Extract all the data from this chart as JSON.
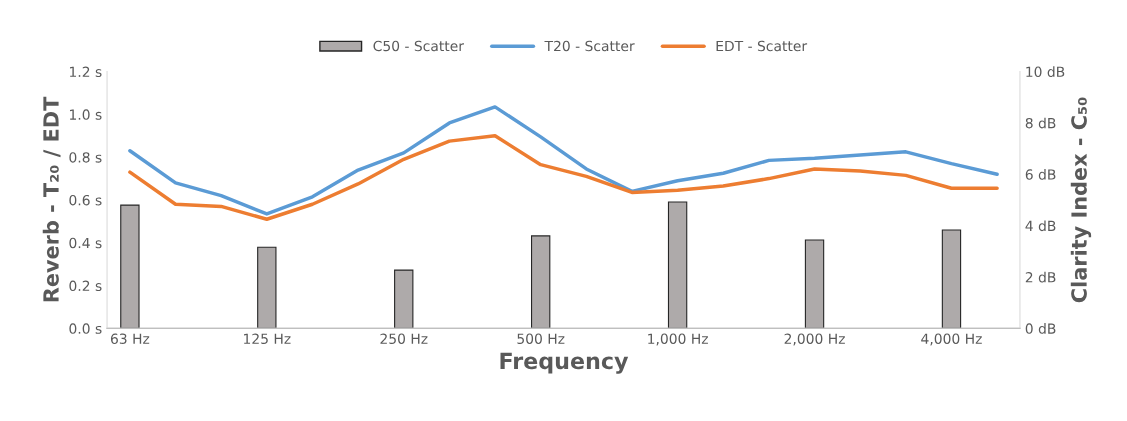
{
  "chart_data": {
    "type": "line",
    "xlabel": "Frequency",
    "ylabel": "Reverb - T₂₀ / EDT",
    "y2label": "Clarity Index - C₅₀",
    "categories": [
      "63 Hz",
      null,
      null,
      "125 Hz",
      null,
      null,
      "250 Hz",
      null,
      null,
      "500 Hz",
      null,
      null,
      "1,000 Hz",
      null,
      null,
      "2,000 Hz",
      null,
      null,
      "4,000 Hz",
      null
    ],
    "series": [
      {
        "name": "C50 - Scatter",
        "type": "bar",
        "axis": "y2",
        "color": "#aeaaaa",
        "values": [
          4.8,
          null,
          null,
          3.16,
          null,
          null,
          2.27,
          null,
          null,
          3.6,
          null,
          null,
          4.92,
          null,
          null,
          3.44,
          null,
          null,
          3.83,
          null
        ]
      },
      {
        "name": "T20 - Scatter",
        "color": "#5b9bd5",
        "values": [
          0.83,
          0.68,
          0.62,
          0.535,
          0.615,
          0.74,
          0.82,
          0.96,
          1.035,
          0.895,
          0.745,
          0.64,
          0.69,
          0.725,
          0.785,
          0.795,
          0.81,
          0.825,
          0.77,
          0.72
        ]
      },
      {
        "name": "EDT - Scatter",
        "color": "#ed7d31",
        "values": [
          0.73,
          0.58,
          0.57,
          0.51,
          0.58,
          0.675,
          0.79,
          0.875,
          0.9,
          0.765,
          0.71,
          0.635,
          0.645,
          0.665,
          0.7,
          0.745,
          0.735,
          0.715,
          0.655,
          0.655
        ]
      }
    ],
    "ylim": [
      0,
      1.2
    ],
    "yticks": [
      {
        "value": 0,
        "label": "0.0 s"
      },
      {
        "value": 0.2,
        "label": "0.2 s"
      },
      {
        "value": 0.4,
        "label": "0.4 s"
      },
      {
        "value": 0.6,
        "label": "0.6 s"
      },
      {
        "value": 0.8,
        "label": "0.8 s"
      },
      {
        "value": 1.0,
        "label": "1.0 s"
      },
      {
        "value": 1.2,
        "label": "1.2 s"
      }
    ],
    "y2lim": [
      0,
      10
    ],
    "y2ticks": [
      {
        "value": 0,
        "label": "0 dB"
      },
      {
        "value": 2,
        "label": "2 dB"
      },
      {
        "value": 4,
        "label": "4 dB"
      },
      {
        "value": 6,
        "label": "6 dB"
      },
      {
        "value": 8,
        "label": "8 dB"
      },
      {
        "value": 10,
        "label": "10 dB"
      }
    ],
    "legend": "top",
    "grid": false,
    "marker": "none",
    "line_style": "solid"
  }
}
